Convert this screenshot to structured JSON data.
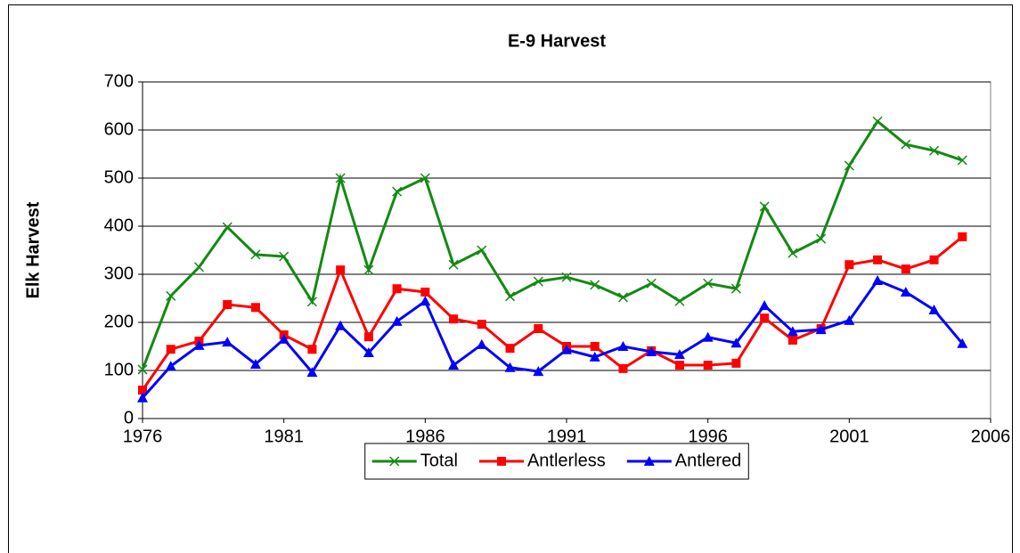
{
  "chart_data": {
    "type": "line",
    "title": "E-9 Harvest",
    "y_label": "Elk Harvest",
    "x": [
      1976,
      1977,
      1978,
      1979,
      1980,
      1981,
      1982,
      1983,
      1984,
      1985,
      1986,
      1987,
      1988,
      1989,
      1990,
      1991,
      1992,
      1993,
      1994,
      1995,
      1996,
      1997,
      1998,
      1999,
      2000,
      2001,
      2002,
      2003,
      2004,
      2005
    ],
    "series": [
      {
        "name": "Total",
        "color": "#138a13",
        "marker": "x",
        "values": [
          102,
          255,
          315,
          398,
          341,
          337,
          243,
          500,
          309,
          472,
          500,
          320,
          350,
          254,
          285,
          294,
          278,
          252,
          281,
          244,
          281,
          270,
          441,
          344,
          374,
          526,
          618,
          570,
          557,
          537
        ]
      },
      {
        "name": "Antlerless",
        "color": "#ff0000",
        "marker": "square",
        "values": [
          59,
          144,
          161,
          237,
          231,
          174,
          144,
          309,
          170,
          270,
          263,
          207,
          196,
          146,
          187,
          150,
          150,
          104,
          141,
          111,
          111,
          115,
          209,
          163,
          187,
          320,
          330,
          311,
          330,
          378
        ]
      },
      {
        "name": "Antlered",
        "color": "#0000ff",
        "marker": "triangle",
        "values": [
          43,
          109,
          152,
          159,
          113,
          165,
          96,
          193,
          137,
          202,
          244,
          111,
          154,
          106,
          98,
          143,
          128,
          150,
          139,
          133,
          169,
          157,
          235,
          181,
          185,
          204,
          287,
          263,
          226,
          156
        ]
      }
    ],
    "xlim": [
      1976,
      2006
    ],
    "xticks": [
      1976,
      1981,
      1986,
      1991,
      1996,
      2001,
      2006
    ],
    "ylim": [
      0,
      700
    ],
    "yticks": [
      0,
      100,
      200,
      300,
      400,
      500,
      600,
      700
    ],
    "grid": true,
    "legend": "bottom"
  }
}
